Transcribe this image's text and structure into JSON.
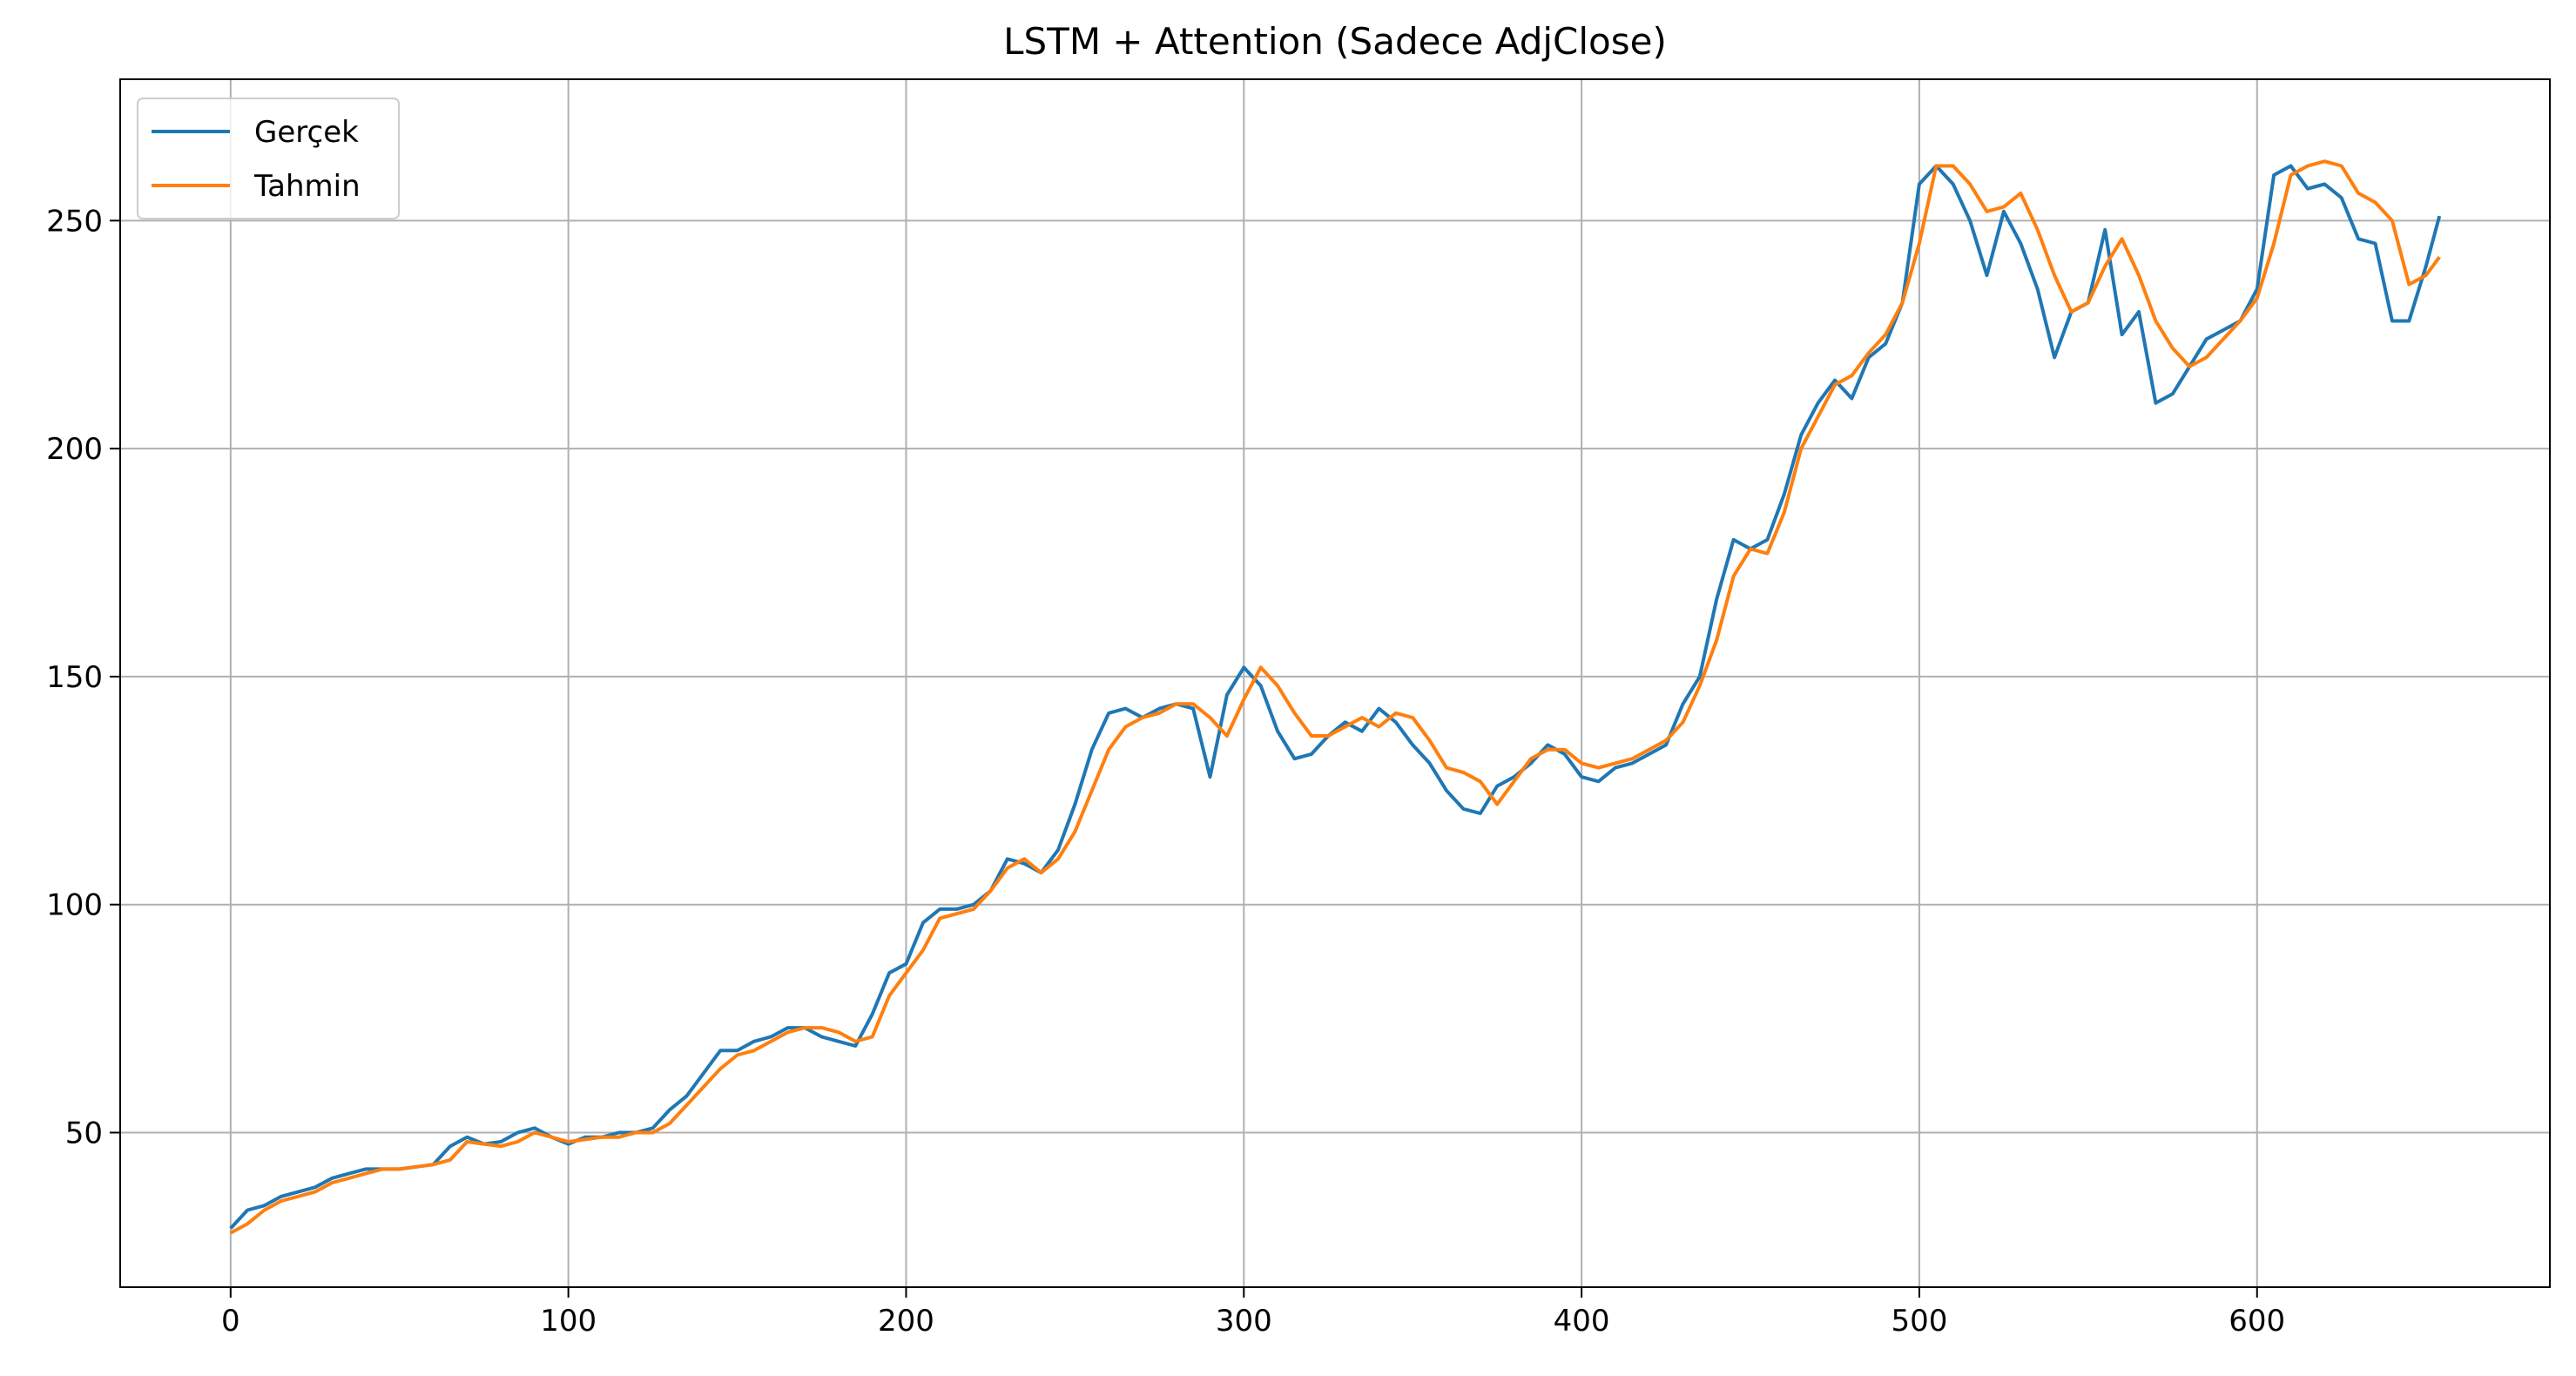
{
  "chart_data": {
    "type": "line",
    "title": "LSTM + Attention (Sadece AdjClose)",
    "x": [
      0,
      5,
      10,
      15,
      20,
      25,
      30,
      35,
      40,
      45,
      50,
      55,
      60,
      65,
      70,
      75,
      80,
      85,
      90,
      95,
      100,
      105,
      110,
      115,
      120,
      125,
      130,
      135,
      140,
      145,
      150,
      155,
      160,
      165,
      170,
      175,
      180,
      185,
      190,
      195,
      200,
      205,
      210,
      215,
      220,
      225,
      230,
      235,
      240,
      245,
      250,
      255,
      260,
      265,
      270,
      275,
      280,
      285,
      290,
      295,
      300,
      305,
      310,
      315,
      320,
      325,
      330,
      335,
      340,
      345,
      350,
      355,
      360,
      365,
      370,
      375,
      380,
      385,
      390,
      395,
      400,
      405,
      410,
      415,
      420,
      425,
      430,
      435,
      440,
      445,
      450,
      455,
      460,
      465,
      470,
      475,
      480,
      485,
      490,
      495,
      500,
      505,
      510,
      515,
      520,
      525,
      530,
      535,
      540,
      545,
      550,
      555,
      560,
      565,
      570,
      575,
      580,
      585,
      590,
      595,
      600,
      605,
      610,
      615,
      620,
      625,
      630,
      635,
      640,
      645,
      650,
      654
    ],
    "series": [
      {
        "name": "Gerçek",
        "color": "#1f77b4",
        "values": [
          29,
          33,
          34,
          36,
          37,
          38,
          40,
          41,
          42,
          42,
          42,
          42.5,
          43,
          47,
          49,
          47.5,
          48,
          50,
          51,
          49,
          47.5,
          49,
          49,
          50,
          50,
          51,
          55,
          58,
          63,
          68,
          68,
          70,
          71,
          73,
          73,
          71,
          70,
          69,
          76,
          85,
          87,
          96,
          99,
          99,
          100,
          103,
          110,
          109,
          107,
          112,
          122,
          134,
          142,
          143,
          141,
          143,
          144,
          143,
          128,
          146,
          152,
          148,
          138,
          132,
          133,
          137,
          140,
          138,
          143,
          140,
          135,
          131,
          125,
          121,
          120,
          126,
          128,
          131,
          135,
          133,
          128,
          127,
          130,
          131,
          133,
          135,
          144,
          150,
          167,
          180,
          178,
          180,
          190,
          203,
          210,
          215,
          211,
          220,
          223,
          232,
          258,
          262,
          258,
          250,
          238,
          252,
          245,
          235,
          220,
          230,
          232,
          248,
          225,
          230,
          210,
          212,
          218,
          224,
          226,
          228,
          235,
          260,
          262,
          257,
          258,
          255,
          246,
          245,
          228,
          228,
          240,
          251
        ]
      },
      {
        "name": "Tahmin",
        "color": "#ff7f0e",
        "values": [
          28,
          30,
          33,
          35,
          36,
          37,
          39,
          40,
          41,
          42,
          42,
          42.5,
          43,
          44,
          48,
          47.5,
          47,
          48,
          50,
          49,
          48,
          48.5,
          49,
          49,
          50,
          50,
          52,
          56,
          60,
          64,
          67,
          68,
          70,
          72,
          73,
          73,
          72,
          70,
          71,
          80,
          85,
          90,
          97,
          98,
          99,
          103,
          108,
          110,
          107,
          110,
          116,
          125,
          134,
          139,
          141,
          142,
          144,
          144,
          141,
          137,
          145,
          152,
          148,
          142,
          137,
          137,
          139,
          141,
          139,
          142,
          141,
          136,
          130,
          129,
          127,
          122,
          127,
          132,
          134,
          134,
          131,
          130,
          131,
          132,
          134,
          136,
          140,
          148,
          158,
          172,
          178,
          177,
          186,
          200,
          207,
          214,
          216,
          221,
          225,
          232,
          245,
          262,
          262,
          258,
          252,
          253,
          256,
          248,
          238,
          230,
          232,
          240,
          246,
          238,
          228,
          222,
          218,
          220,
          224,
          228,
          233,
          245,
          260,
          262,
          263,
          262,
          256,
          254,
          250,
          236,
          238,
          242
        ]
      }
    ],
    "xlim": [
      -32.7,
      686.7
    ],
    "ylim": [
      16.1,
      281
    ],
    "xticks": [
      0,
      100,
      200,
      300,
      400,
      500,
      600
    ],
    "yticks": [
      50,
      100,
      150,
      200,
      250
    ],
    "grid": true,
    "legend": "upper left"
  }
}
